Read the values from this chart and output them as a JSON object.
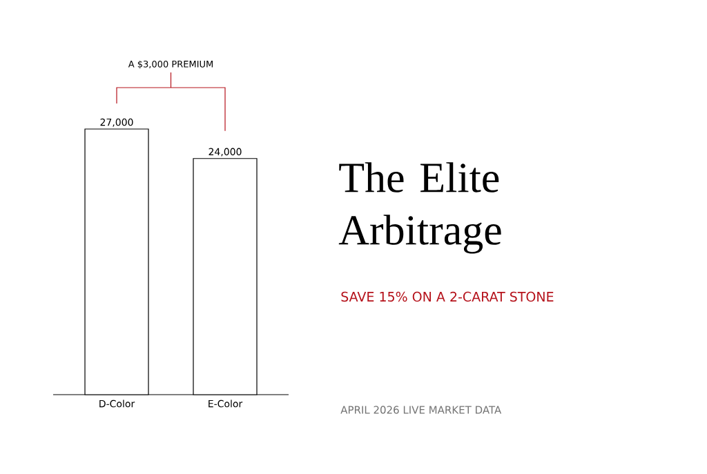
{
  "chart_data": {
    "type": "bar",
    "title": "The Elite Arbitrage",
    "subtitle": "SAVE 15% ON A 2-CARAT STONE",
    "categories": [
      "D-Color",
      "E-Color"
    ],
    "values": [
      27000,
      24000
    ],
    "value_labels": [
      "27,000",
      "24,000"
    ],
    "color": "#ffffff",
    "annotations": [
      "A $3,000 PREMIUM",
      "APRIL 2026 LIVE MARKET DATA"
    ]
  }
}
